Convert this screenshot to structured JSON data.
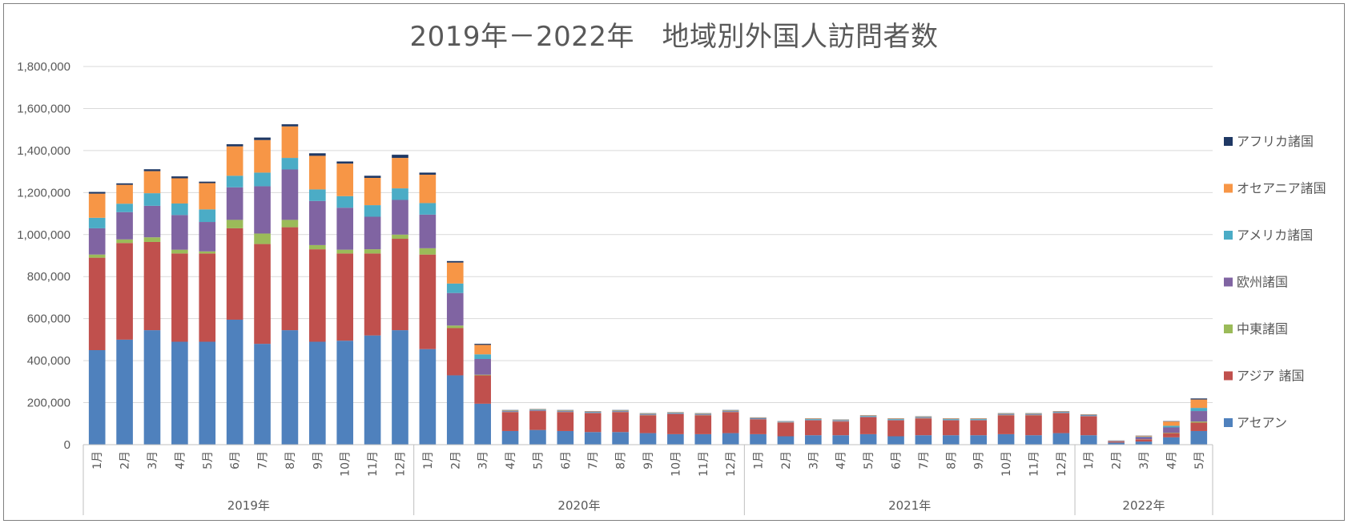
{
  "colors": {
    "asean": "#4f81bd",
    "asia": "#c0504d",
    "middle_east": "#9bbb59",
    "europe": "#8064a2",
    "america": "#4bacc6",
    "oceania": "#f79646",
    "africa": "#1f3864",
    "grid": "#d9d9d9",
    "axis": "#bfbfbf",
    "text": "#595959"
  },
  "chart_data": {
    "type": "bar",
    "stacked": true,
    "title": "2019年－2022年　地域別外国人訪問者数",
    "xlabel": "",
    "ylabel": "",
    "ylim": [
      0,
      1800000
    ],
    "ytick_step": 200000,
    "yticks": [
      "0",
      "200,000",
      "400,000",
      "600,000",
      "800,000",
      "1,000,000",
      "1,200,000",
      "1,400,000",
      "1,600,000",
      "1,800,000"
    ],
    "grid": true,
    "legend_position": "right",
    "groups": [
      {
        "label": "2019年",
        "months": [
          "1月",
          "2月",
          "3月",
          "4月",
          "5月",
          "6月",
          "7月",
          "8月",
          "9月",
          "10月",
          "11月",
          "12月"
        ]
      },
      {
        "label": "2020年",
        "months": [
          "1月",
          "2月",
          "3月",
          "4月",
          "5月",
          "6月",
          "7月",
          "8月",
          "9月",
          "10月",
          "11月",
          "12月"
        ]
      },
      {
        "label": "2021年",
        "months": [
          "1月",
          "2月",
          "3月",
          "4月",
          "5月",
          "6月",
          "7月",
          "8月",
          "9月",
          "10月",
          "11月",
          "12月"
        ]
      },
      {
        "label": "2022年",
        "months": [
          "1月",
          "2月",
          "3月",
          "4月",
          "5月"
        ]
      }
    ],
    "series": [
      {
        "name": "アセアン",
        "color_key": "asean",
        "values": [
          450000,
          500000,
          545000,
          490000,
          490000,
          595000,
          480000,
          545000,
          490000,
          495000,
          520000,
          545000,
          455000,
          330000,
          195000,
          65000,
          70000,
          65000,
          60000,
          60000,
          55000,
          50000,
          50000,
          55000,
          50000,
          40000,
          45000,
          45000,
          50000,
          40000,
          45000,
          45000,
          45000,
          50000,
          45000,
          55000,
          45000,
          10000,
          15000,
          35000,
          65000
        ]
      },
      {
        "name": "アジア 諸国",
        "color_key": "asia",
        "values": [
          440000,
          460000,
          420000,
          420000,
          420000,
          435000,
          475000,
          490000,
          440000,
          415000,
          390000,
          435000,
          450000,
          225000,
          135000,
          90000,
          90000,
          90000,
          90000,
          95000,
          85000,
          95000,
          90000,
          100000,
          70000,
          65000,
          70000,
          65000,
          80000,
          75000,
          80000,
          70000,
          70000,
          90000,
          95000,
          95000,
          90000,
          5000,
          10000,
          20000,
          40000
        ]
      },
      {
        "name": "中東諸国",
        "color_key": "middle_east",
        "values": [
          15000,
          17000,
          22000,
          18000,
          10000,
          40000,
          50000,
          35000,
          20000,
          18000,
          20000,
          20000,
          30000,
          12000,
          3000,
          1000,
          1000,
          1000,
          1000,
          1000,
          1000,
          1000,
          1000,
          1000,
          1000,
          1000,
          1000,
          1000,
          1000,
          1000,
          1000,
          1000,
          1000,
          1000,
          1000,
          1000,
          1000,
          500,
          1000,
          2000,
          5000
        ]
      },
      {
        "name": "欧州諸国",
        "color_key": "europe",
        "values": [
          125000,
          130000,
          150000,
          165000,
          140000,
          155000,
          225000,
          240000,
          210000,
          200000,
          155000,
          165000,
          160000,
          155000,
          75000,
          3000,
          3000,
          3000,
          3000,
          3000,
          3000,
          3000,
          3000,
          3000,
          3000,
          2000,
          3000,
          3000,
          3000,
          3000,
          3000,
          3000,
          3000,
          3000,
          3000,
          3000,
          3000,
          2000,
          10000,
          25000,
          50000
        ]
      },
      {
        "name": "アメリカ諸国",
        "color_key": "america",
        "values": [
          50000,
          40000,
          60000,
          55000,
          60000,
          55000,
          65000,
          55000,
          55000,
          55000,
          55000,
          55000,
          55000,
          45000,
          22000,
          3000,
          3000,
          3000,
          3000,
          3000,
          3000,
          3000,
          3000,
          3000,
          3000,
          2000,
          3000,
          3000,
          3000,
          3000,
          3000,
          3000,
          3000,
          3000,
          3000,
          3000,
          3000,
          1000,
          3000,
          8000,
          15000
        ]
      },
      {
        "name": "オセアニア諸国",
        "color_key": "oceania",
        "values": [
          115000,
          90000,
          105000,
          120000,
          125000,
          140000,
          155000,
          150000,
          160000,
          155000,
          130000,
          145000,
          135000,
          100000,
          45000,
          2000,
          2000,
          2000,
          2000,
          2000,
          2000,
          2000,
          2000,
          2000,
          2000,
          1000,
          2000,
          2000,
          2000,
          2000,
          2000,
          2000,
          2000,
          2000,
          2000,
          2000,
          2000,
          1000,
          3000,
          20000,
          40000
        ]
      },
      {
        "name": "アフリカ諸国",
        "color_key": "africa",
        "values": [
          8000,
          7000,
          9000,
          9000,
          7000,
          10000,
          12000,
          10000,
          12000,
          10000,
          10000,
          15000,
          10000,
          7000,
          5000,
          1000,
          1000,
          1000,
          1000,
          1000,
          1000,
          1000,
          1000,
          1000,
          1000,
          1000,
          1000,
          1000,
          1000,
          1000,
          1000,
          1000,
          1000,
          1000,
          1000,
          1000,
          1000,
          500,
          1000,
          2000,
          5000
        ]
      }
    ]
  }
}
